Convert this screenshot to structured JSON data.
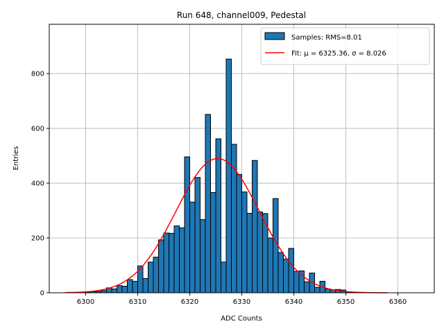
{
  "chart_data": {
    "type": "bar",
    "title": "Run 648, channel009, Pedestal",
    "xlabel": "ADC Counts",
    "ylabel": "Entries",
    "xlim": [
      6293,
      6367
    ],
    "ylim": [
      0,
      980
    ],
    "xticks": [
      6300,
      6310,
      6320,
      6330,
      6340,
      6350,
      6360
    ],
    "yticks": [
      0,
      200,
      400,
      600,
      800
    ],
    "grid": true,
    "legend_position": "top-right",
    "histogram": {
      "name": "Samples: RMS=8.01",
      "color": "#1f77b4",
      "edge_color": "#000000",
      "bin_width": 1,
      "bin_starts": [
        6300,
        6301,
        6302,
        6303,
        6304,
        6305,
        6306,
        6307,
        6308,
        6309,
        6310,
        6311,
        6312,
        6313,
        6314,
        6315,
        6316,
        6317,
        6318,
        6319,
        6320,
        6321,
        6322,
        6323,
        6324,
        6325,
        6326,
        6327,
        6328,
        6329,
        6330,
        6331,
        6332,
        6333,
        6334,
        6335,
        6336,
        6337,
        6338,
        6339,
        6340,
        6341,
        6342,
        6343,
        6344,
        6345,
        6346,
        6347,
        6348,
        6349,
        6350
      ],
      "counts": [
        2,
        4,
        5,
        8,
        18,
        14,
        26,
        24,
        48,
        42,
        98,
        52,
        112,
        130,
        193,
        218,
        217,
        244,
        237,
        496,
        331,
        421,
        267,
        651,
        366,
        562,
        112,
        853,
        542,
        432,
        368,
        290,
        483,
        295,
        289,
        200,
        344,
        147,
        123,
        162,
        78,
        80,
        40,
        72,
        20,
        42,
        14,
        11,
        12,
        10,
        2
      ]
    },
    "fit": {
      "name": "Fit: μ = 6325.36, σ = 8.026",
      "color": "#ff0000",
      "mu": 6325.36,
      "sigma": 8.026,
      "amplitude": 490,
      "x_range": [
        6296,
        6358
      ]
    }
  }
}
